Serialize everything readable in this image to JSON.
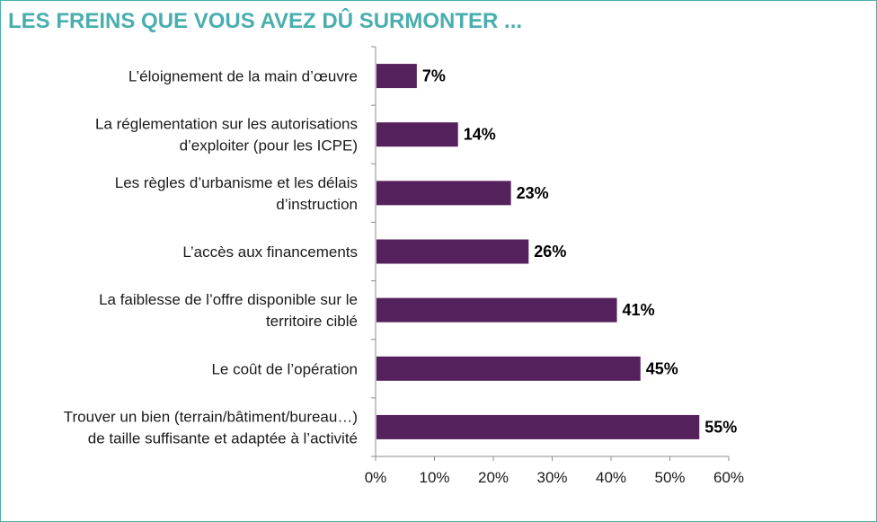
{
  "header": {
    "title": "LES FREINS QUE VOUS AVEZ DÛ SURMONTER ..."
  },
  "colors": {
    "title": "#4aaeae",
    "frame": "#4aaeae",
    "bar": "#55215c",
    "axis": "#8c8c8c"
  },
  "chart_data": {
    "type": "bar",
    "orientation": "horizontal",
    "title": "LES FREINS QUE VOUS AVEZ DÛ SURMONTER ...",
    "xlabel": "",
    "ylabel": "",
    "xlim": [
      0,
      60
    ],
    "grid": false,
    "categories": [
      [
        "L’éloignement de la main d’œuvre"
      ],
      [
        "La réglementation sur les autorisations",
        "d’exploiter (pour les ICPE)"
      ],
      [
        "Les règles d’urbanisme et les délais",
        "d’instruction"
      ],
      [
        "L’accès aux financements"
      ],
      [
        "La faiblesse de l’offre disponible sur le",
        "territoire ciblé"
      ],
      [
        "Le coût de l’opération"
      ],
      [
        "Trouver un bien (terrain/bâtiment/bureau…)",
        "de taille suffisante et adaptée à l’activité"
      ]
    ],
    "values": [
      7,
      14,
      23,
      26,
      41,
      45,
      55
    ],
    "value_labels": [
      "7%",
      "14%",
      "23%",
      "26%",
      "41%",
      "45%",
      "55%"
    ],
    "x_ticks": [
      0,
      10,
      20,
      30,
      40,
      50,
      60
    ],
    "x_tick_labels": [
      "0%",
      "10%",
      "20%",
      "30%",
      "40%",
      "50%",
      "60%"
    ]
  }
}
